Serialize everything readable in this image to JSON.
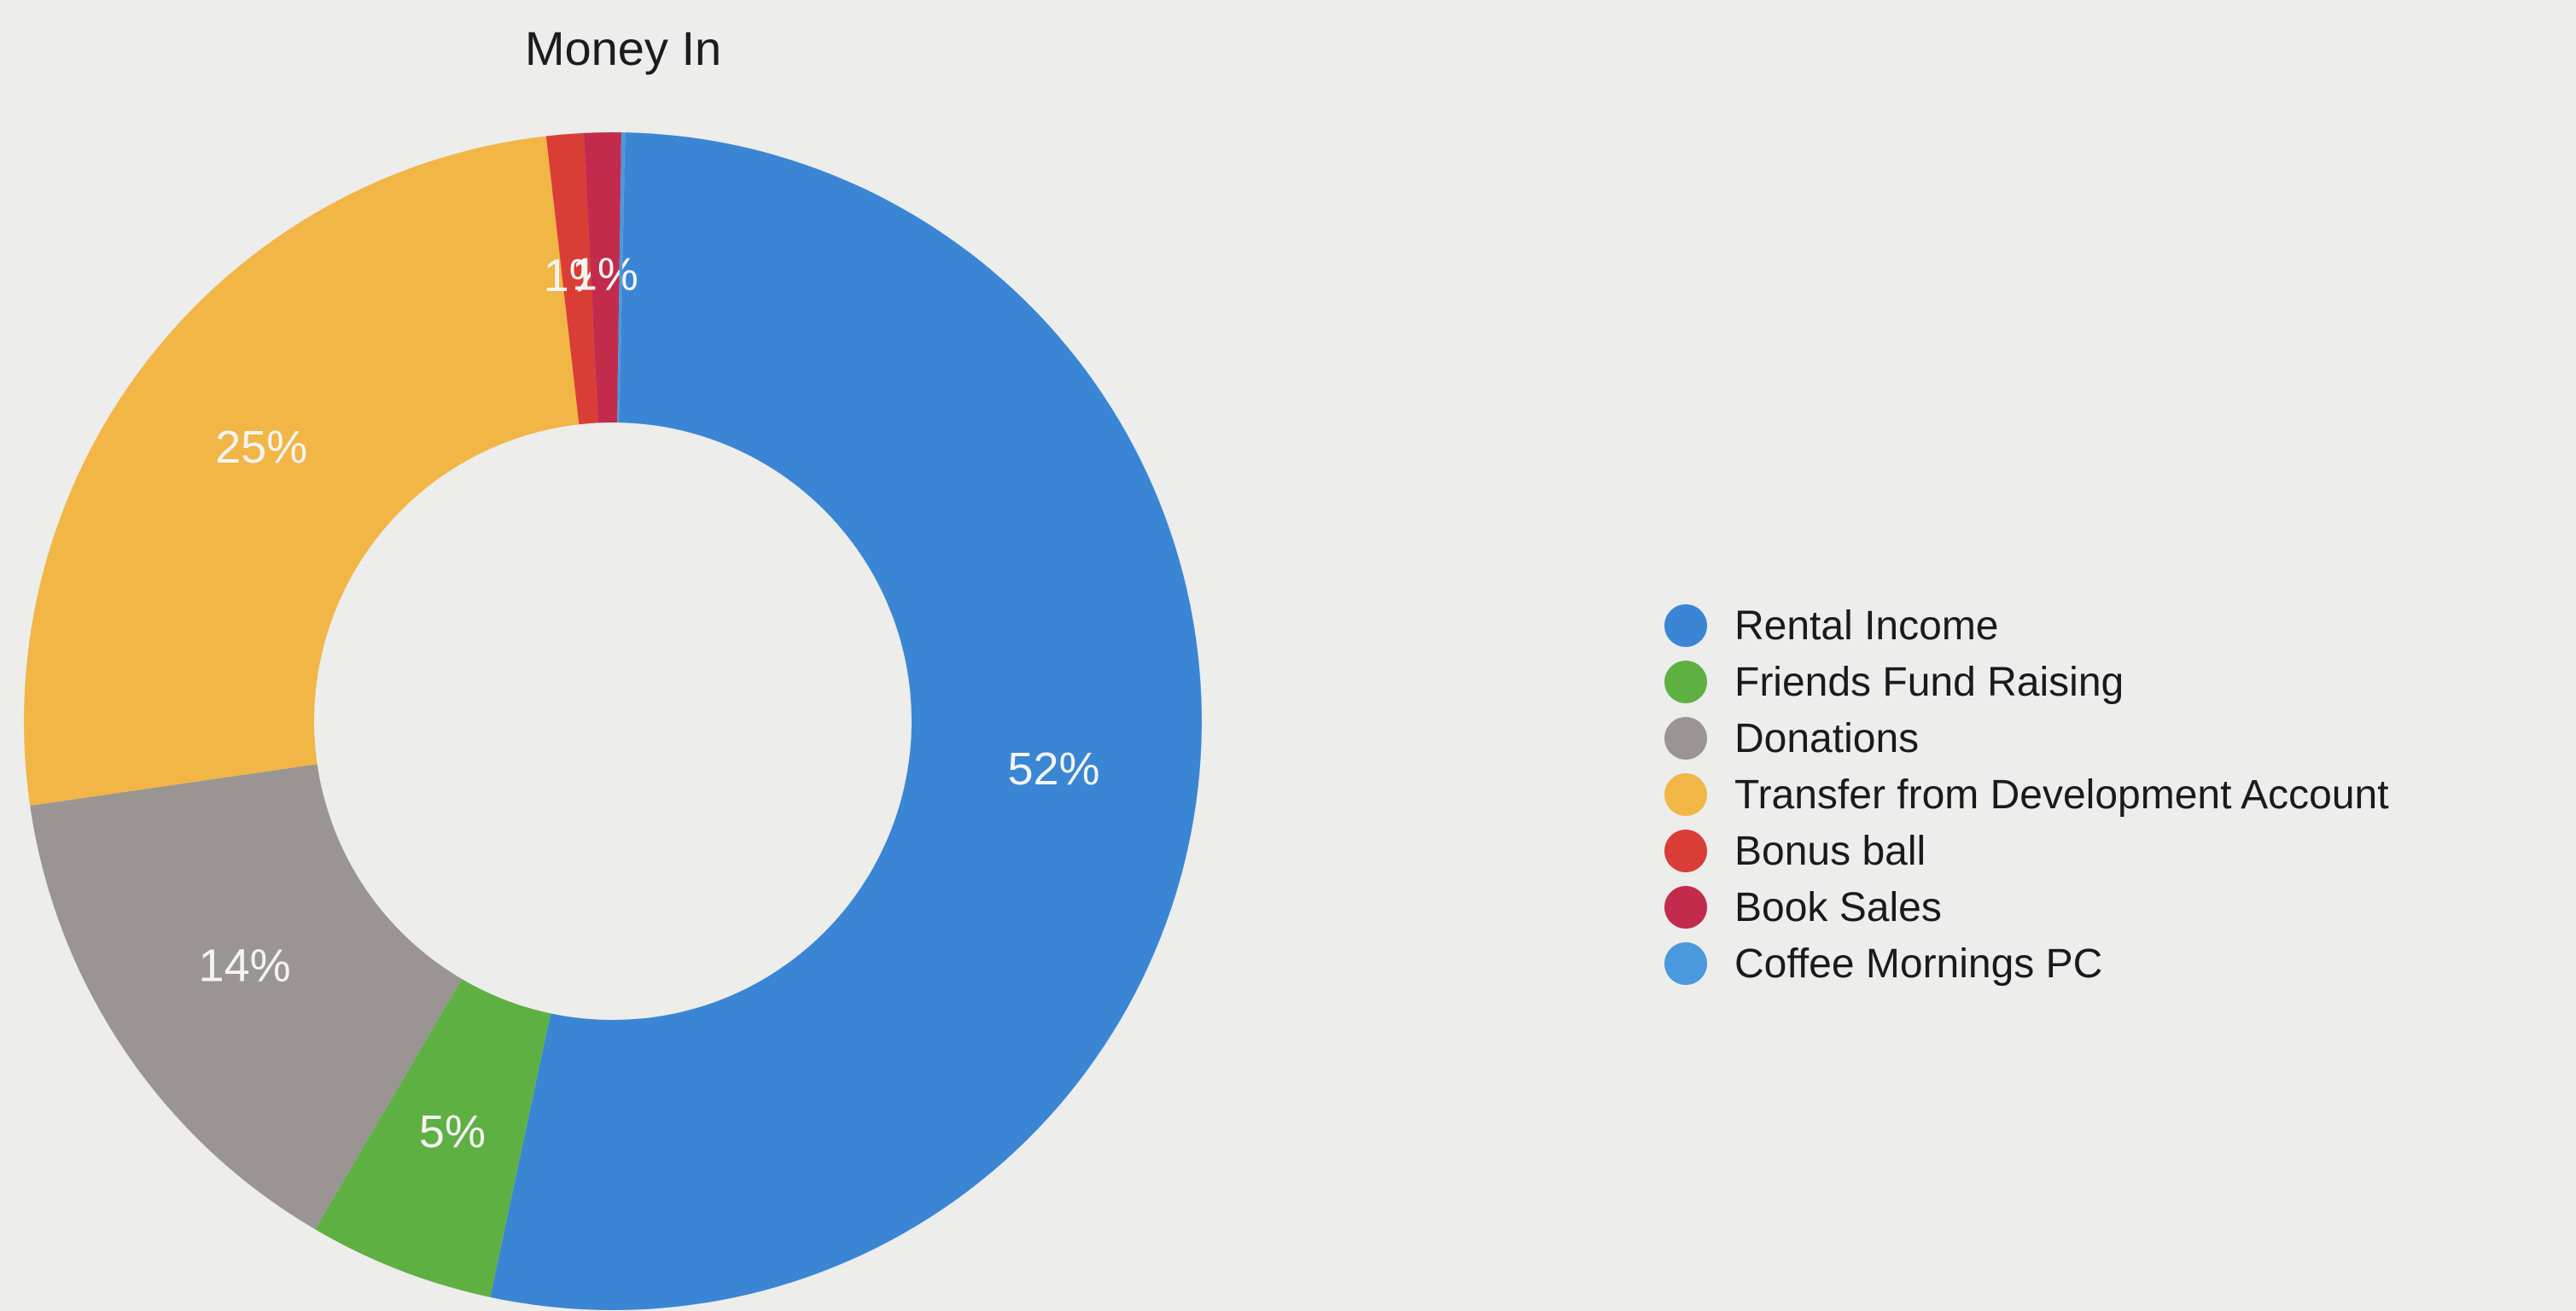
{
  "chart_data": {
    "type": "pie",
    "title": "Money In",
    "donut": true,
    "legend_position": "right",
    "slices": [
      {
        "name": "Rental Income",
        "value": 52,
        "label": "52%",
        "color": "#3a86d4"
      },
      {
        "name": "Friends Fund Raising",
        "value": 5,
        "label": "5%",
        "color": "#5fb043"
      },
      {
        "name": "Donations",
        "value": 14,
        "label": "14%",
        "color": "#9a9592"
      },
      {
        "name": "Transfer from Development Account",
        "value": 25,
        "label": "25%",
        "color": "#f1b645"
      },
      {
        "name": "Bonus ball",
        "value": 1,
        "label": "1%",
        "color": "#d93d36"
      },
      {
        "name": "Book Sales",
        "value": 1,
        "label": "1%",
        "color": "#c22b4c"
      },
      {
        "name": "Coffee Mornings PC",
        "value": 0.1,
        "label": "",
        "color": "#4a99dd"
      }
    ]
  }
}
